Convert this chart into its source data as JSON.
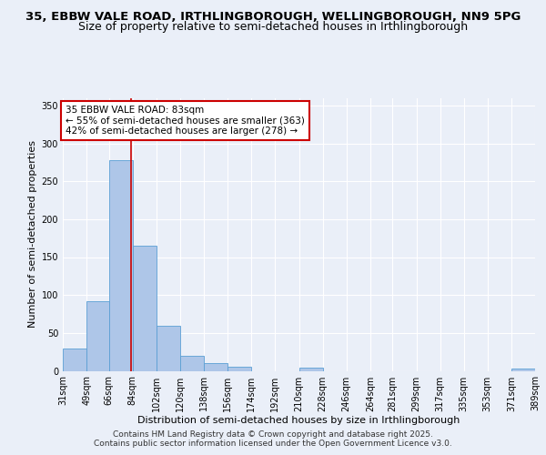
{
  "title_line1": "35, EBBW VALE ROAD, IRTHLINGBOROUGH, WELLINGBOROUGH, NN9 5PG",
  "title_line2": "Size of property relative to semi-detached houses in Irthlingborough",
  "xlabel": "Distribution of semi-detached houses by size in Irthlingborough",
  "ylabel": "Number of semi-detached properties",
  "annotation_title": "35 EBBW VALE ROAD: 83sqm",
  "annotation_line2": "← 55% of semi-detached houses are smaller (363)",
  "annotation_line3": "42% of semi-detached houses are larger (278) →",
  "footer_line1": "Contains HM Land Registry data © Crown copyright and database right 2025.",
  "footer_line2": "Contains public sector information licensed under the Open Government Licence v3.0.",
  "property_size": 83,
  "bin_edges": [
    31,
    49,
    66,
    84,
    102,
    120,
    138,
    156,
    174,
    192,
    210,
    228,
    246,
    264,
    281,
    299,
    317,
    335,
    353,
    371,
    389
  ],
  "bar_heights": [
    30,
    92,
    278,
    165,
    60,
    20,
    10,
    5,
    0,
    0,
    4,
    0,
    0,
    0,
    0,
    0,
    0,
    0,
    0,
    3
  ],
  "bar_color": "#aec6e8",
  "bar_edge_color": "#5a9fd4",
  "vline_color": "#cc0000",
  "background_color": "#eaeff8",
  "annotation_box_color": "#ffffff",
  "annotation_box_edge": "#cc0000",
  "ylim": [
    0,
    360
  ],
  "yticks": [
    0,
    50,
    100,
    150,
    200,
    250,
    300,
    350
  ],
  "grid_color": "#ffffff",
  "title_fontsize": 9.5,
  "subtitle_fontsize": 9,
  "label_fontsize": 8,
  "tick_fontsize": 7,
  "footer_fontsize": 6.5,
  "annotation_fontsize": 7.5
}
